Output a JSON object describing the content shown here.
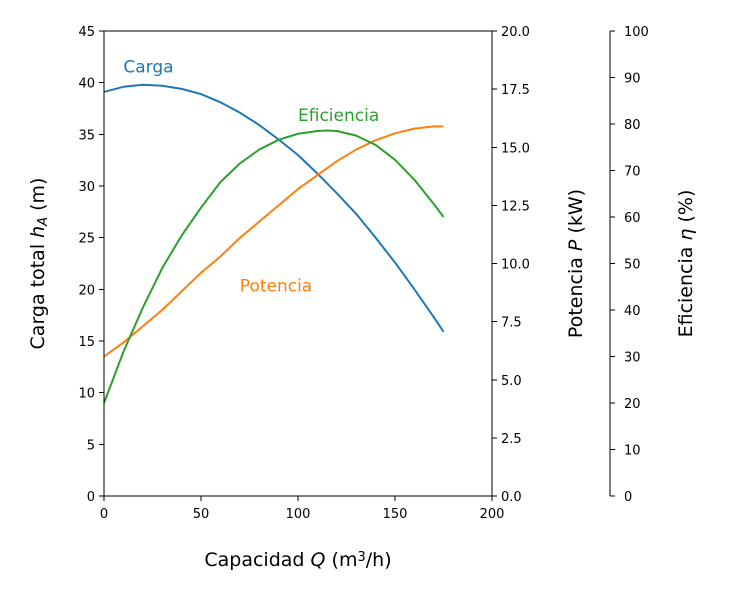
{
  "chart_data": {
    "type": "line",
    "x": {
      "label_parts": [
        "Capacidad ",
        "Q",
        " (m",
        "3",
        "/h)"
      ],
      "range": [
        0,
        200
      ],
      "ticks": [
        "0",
        "50",
        "100",
        "150",
        "200"
      ]
    },
    "y_axes": [
      {
        "id": "head",
        "side": "left",
        "label_parts": [
          "Carga total ",
          "h",
          "A",
          " (m)"
        ],
        "range": [
          0,
          45
        ],
        "ticks": [
          "0",
          "5",
          "10",
          "15",
          "20",
          "25",
          "30",
          "35",
          "40",
          "45"
        ]
      },
      {
        "id": "power",
        "side": "right",
        "label_parts": [
          "Potencia ",
          "P",
          " (kW)"
        ],
        "range": [
          0,
          20
        ],
        "ticks": [
          "0.0",
          "2.5",
          "5.0",
          "7.5",
          "10.0",
          "12.5",
          "15.0",
          "17.5",
          "20.0"
        ]
      },
      {
        "id": "eff",
        "side": "right-outer",
        "label_parts": [
          "Eficiencia ",
          "η",
          " (%)"
        ],
        "range": [
          0,
          100
        ],
        "ticks": [
          "0",
          "10",
          "20",
          "30",
          "40",
          "50",
          "60",
          "70",
          "80",
          "90",
          "100"
        ]
      }
    ],
    "grid": false,
    "series": [
      {
        "name": "Carga",
        "axis": "head",
        "color": "#1f77b4",
        "x": [
          0,
          10,
          20,
          30,
          40,
          50,
          60,
          70,
          80,
          90,
          100,
          110,
          120,
          130,
          140,
          150,
          160,
          170,
          175
        ],
        "y": [
          39.1,
          39.6,
          39.8,
          39.7,
          39.4,
          38.9,
          38.1,
          37.1,
          35.9,
          34.5,
          33.0,
          31.2,
          29.3,
          27.3,
          25.0,
          22.6,
          20.0,
          17.3,
          15.9
        ]
      },
      {
        "name": "Potencia",
        "axis": "power",
        "color": "#ff7f0e",
        "x": [
          0,
          10,
          20,
          30,
          40,
          50,
          60,
          70,
          80,
          90,
          100,
          110,
          120,
          130,
          140,
          150,
          160,
          170,
          175
        ],
        "y": [
          6.0,
          6.6,
          7.3,
          8.0,
          8.8,
          9.6,
          10.3,
          11.1,
          11.8,
          12.5,
          13.2,
          13.8,
          14.4,
          14.9,
          15.3,
          15.6,
          15.8,
          15.9,
          15.9
        ]
      },
      {
        "name": "Eficiencia",
        "axis": "eff",
        "color": "#2ca02c",
        "x": [
          0,
          10,
          20,
          30,
          40,
          50,
          60,
          70,
          80,
          90,
          100,
          110,
          115,
          120,
          130,
          140,
          150,
          160,
          170,
          175
        ],
        "y": [
          20.0,
          31.0,
          40.5,
          49.0,
          56.0,
          62.0,
          67.5,
          71.5,
          74.5,
          76.6,
          77.9,
          78.5,
          78.6,
          78.5,
          77.5,
          75.5,
          72.3,
          68.0,
          62.8,
          60.0
        ]
      }
    ],
    "annotations": [
      {
        "text": "Carga",
        "color": "#1f77b4",
        "x": 10,
        "y": 41.0,
        "axis": "head"
      },
      {
        "text": "Eficiencia",
        "color": "#2ca02c",
        "x": 100,
        "y": 36.3,
        "axis": "head"
      },
      {
        "text": "Potencia",
        "color": "#ff7f0e",
        "x": 70,
        "y": 19.8,
        "axis": "head"
      }
    ]
  }
}
